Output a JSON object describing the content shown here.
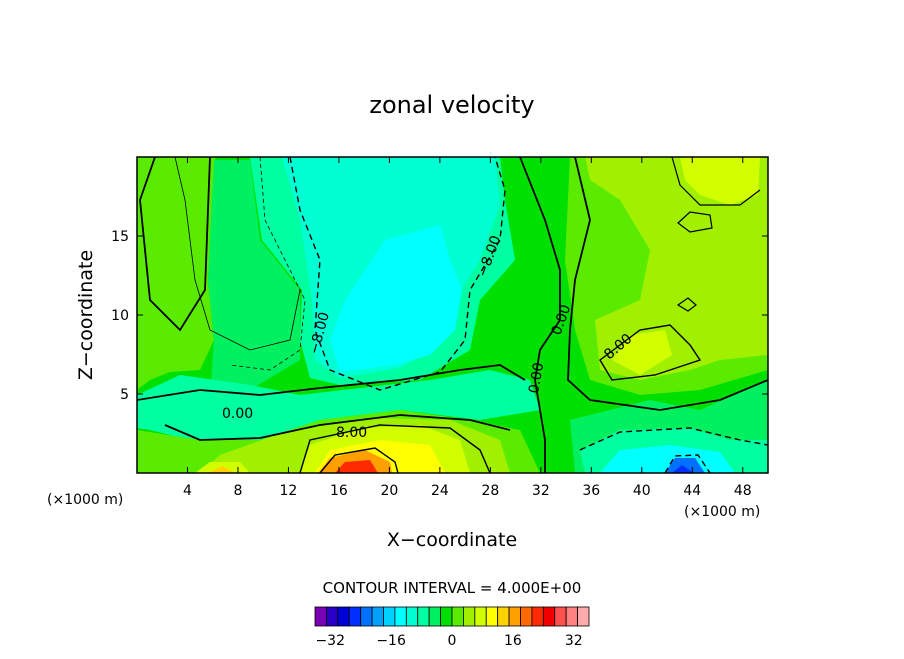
{
  "chart_data": {
    "type": "heatmap",
    "title": "zonal velocity",
    "xlabel": "X−coordinate",
    "ylabel": "Z−coordinate",
    "x_unit": "(×1000 m)",
    "y_unit": "(×1000 m)",
    "xlim": [
      0,
      50
    ],
    "ylim": [
      0,
      20
    ],
    "x_ticks": [
      "4",
      "8",
      "12",
      "16",
      "20",
      "24",
      "28",
      "32",
      "36",
      "40",
      "44",
      "48"
    ],
    "y_ticks": [
      "5",
      "10",
      "15"
    ],
    "contour_interval_text": "CONTOUR INTERVAL = 4.000E+00",
    "contour_labels": [
      "8.00",
      "0.00",
      "0.00",
      "−8.00",
      "8.00",
      "0.00",
      "−8.00",
      "−8.00",
      "8.00"
    ],
    "colorbar": {
      "ticks": [
        "−32",
        "−16",
        "0",
        "16",
        "32"
      ],
      "colors": [
        "#7a00b4",
        "#2a00c8",
        "#0000d8",
        "#0030ff",
        "#0070ff",
        "#00a0ff",
        "#00d2ff",
        "#00ffff",
        "#00ffd2",
        "#00ffa0",
        "#00f060",
        "#00e000",
        "#5aeb00",
        "#a0f000",
        "#d2ff00",
        "#ffff00",
        "#ffd200",
        "#ffa000",
        "#ff6a00",
        "#ff2a00",
        "#f00000",
        "#ff5050",
        "#ff8080",
        "#ffaaaa"
      ]
    },
    "grid": false,
    "colorbar_placement": "bottom"
  }
}
